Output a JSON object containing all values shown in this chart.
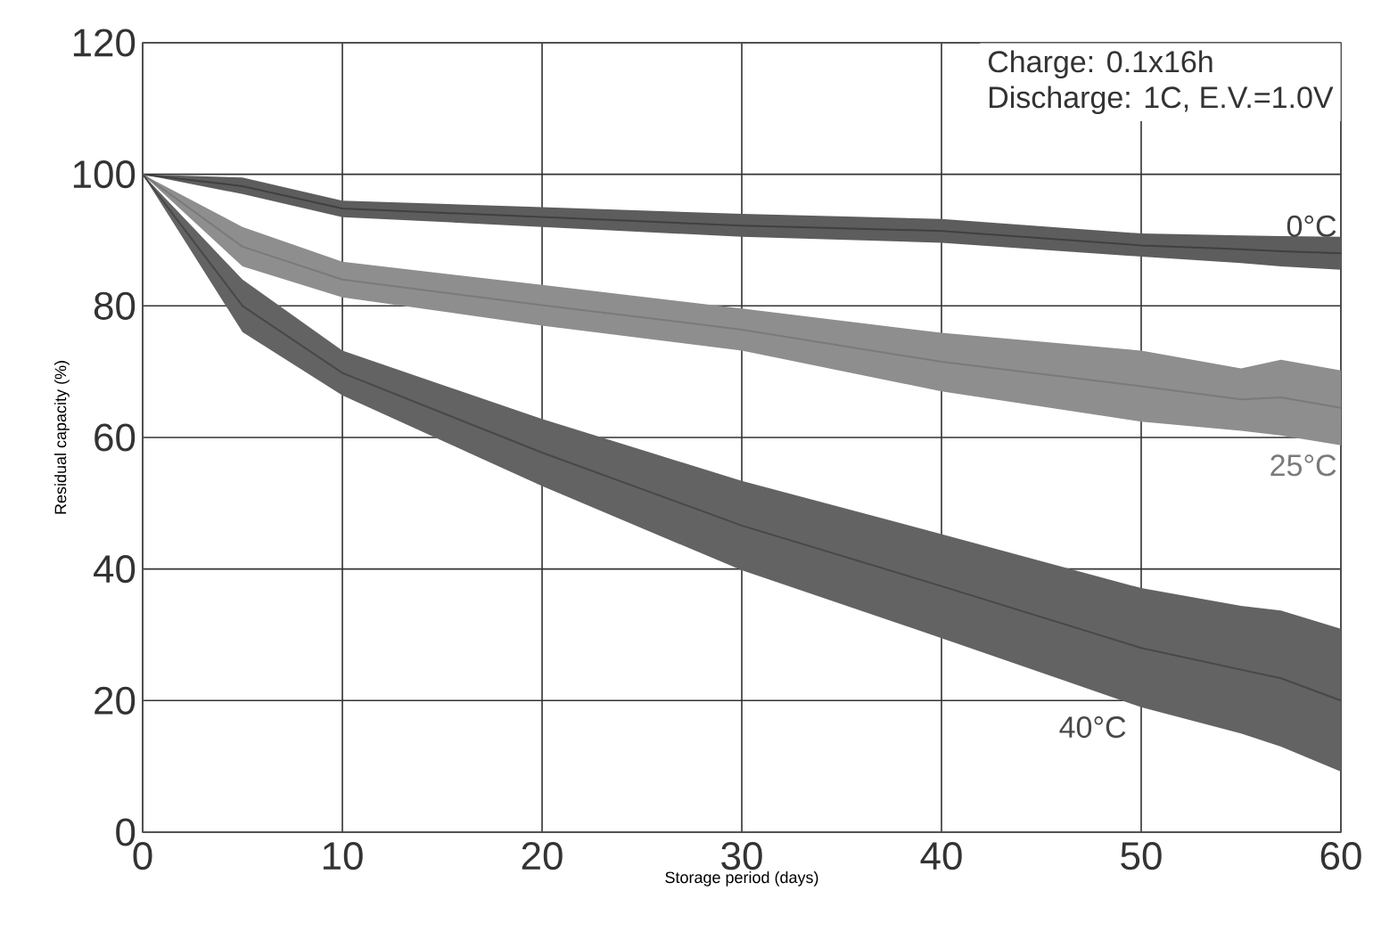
{
  "chart_data": {
    "type": "line",
    "xlabel": "Storage period (days)",
    "ylabel": "Residual capacity (%)",
    "x": [
      0,
      5,
      10,
      20,
      30,
      40,
      50,
      55,
      57,
      60
    ],
    "series": [
      {
        "name": "0°C",
        "color": "#404040",
        "values": [
          100,
          98.2,
          94.8,
          93.5,
          92.2,
          91.4,
          89.2,
          88.6,
          88.3,
          88
        ],
        "lower": [
          100,
          97,
          93.5,
          92,
          90.5,
          89.6,
          87.5,
          86.5,
          86,
          85.5
        ],
        "upper": [
          100,
          99.5,
          96,
          95,
          94,
          93.2,
          91,
          90.7,
          90.6,
          90.5
        ]
      },
      {
        "name": "25°C",
        "color": "#7a7a7a",
        "values": [
          100,
          89,
          84,
          80.1,
          76.4,
          71.5,
          67.8,
          65.8,
          66.1,
          64.5
        ],
        "lower": [
          100,
          86,
          81.3,
          77,
          73.2,
          67,
          62.4,
          61,
          60.3,
          58.8
        ],
        "upper": [
          100,
          92,
          86.7,
          83.2,
          79.6,
          75.9,
          73.2,
          70.5,
          71.8,
          70.2
        ]
      },
      {
        "name": "40°C",
        "color": "#484848",
        "values": [
          100,
          80,
          69.8,
          57.7,
          46.6,
          37.4,
          28,
          24.7,
          23.4,
          20
        ],
        "lower": [
          100,
          76,
          66.4,
          52.6,
          39.8,
          29.5,
          19,
          15,
          13,
          9.2
        ],
        "upper": [
          100,
          84,
          73.2,
          62.8,
          53.4,
          45.3,
          37.1,
          34.4,
          33.7,
          30.9
        ]
      }
    ],
    "xlim": [
      0,
      60
    ],
    "ylim": [
      0,
      120
    ],
    "xticks": [
      0,
      10,
      20,
      30,
      40,
      50,
      60
    ],
    "yticks": [
      0,
      20,
      40,
      60,
      80,
      100,
      120
    ],
    "grid": true,
    "annotations": [
      "Charge: 0.1x16h",
      "Discharge: 1C, E.V.=1.0V"
    ]
  }
}
